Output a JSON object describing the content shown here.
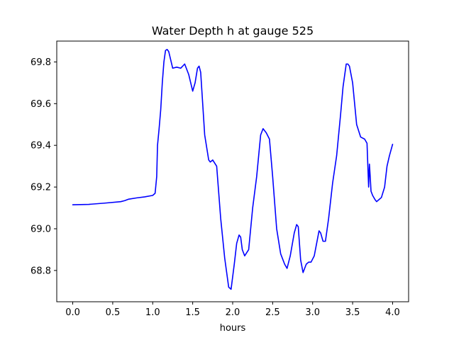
{
  "chart_data": {
    "type": "line",
    "title": "Water Depth h at gauge 525",
    "xlabel": "hours",
    "ylabel": "",
    "xlim": [
      -0.2,
      4.2
    ],
    "ylim": [
      68.65,
      69.9
    ],
    "x_ticks": [
      0.0,
      0.5,
      1.0,
      1.5,
      2.0,
      2.5,
      3.0,
      3.5,
      4.0
    ],
    "x_tick_labels": [
      "0.0",
      "0.5",
      "1.0",
      "1.5",
      "2.0",
      "2.5",
      "3.0",
      "3.5",
      "4.0"
    ],
    "y_ticks": [
      68.8,
      69.0,
      69.2,
      69.4,
      69.6,
      69.8
    ],
    "y_tick_labels": [
      "68.8",
      "69.0",
      "69.2",
      "69.4",
      "69.6",
      "69.8"
    ],
    "grid": false,
    "series": [
      {
        "color": "#0000ff",
        "x": [
          0.0,
          0.2,
          0.4,
          0.6,
          0.65,
          0.7,
          0.8,
          0.9,
          1.0,
          1.03,
          1.05,
          1.06,
          1.08,
          1.1,
          1.12,
          1.14,
          1.16,
          1.18,
          1.2,
          1.25,
          1.3,
          1.35,
          1.4,
          1.45,
          1.5,
          1.53,
          1.56,
          1.58,
          1.6,
          1.65,
          1.7,
          1.72,
          1.75,
          1.8,
          1.85,
          1.9,
          1.95,
          1.98,
          2.02,
          2.05,
          2.08,
          2.1,
          2.12,
          2.15,
          2.2,
          2.25,
          2.3,
          2.35,
          2.38,
          2.42,
          2.46,
          2.5,
          2.55,
          2.6,
          2.65,
          2.68,
          2.72,
          2.77,
          2.8,
          2.82,
          2.85,
          2.88,
          2.92,
          2.95,
          2.98,
          3.02,
          3.05,
          3.08,
          3.1,
          3.13,
          3.16,
          3.2,
          3.25,
          3.3,
          3.35,
          3.38,
          3.42,
          3.44,
          3.46,
          3.5,
          3.55,
          3.6,
          3.65,
          3.68,
          3.7,
          3.71,
          3.72,
          3.73,
          3.75,
          3.78,
          3.8,
          3.83,
          3.86,
          3.9,
          3.93,
          3.96,
          4.0
        ],
        "values": [
          69.115,
          69.117,
          69.123,
          69.13,
          69.135,
          69.142,
          69.148,
          69.153,
          69.16,
          69.17,
          69.25,
          69.4,
          69.48,
          69.57,
          69.7,
          69.8,
          69.855,
          69.86,
          69.85,
          69.77,
          69.775,
          69.77,
          69.79,
          69.74,
          69.66,
          69.7,
          69.77,
          69.78,
          69.75,
          69.45,
          69.33,
          69.32,
          69.33,
          69.3,
          69.05,
          68.86,
          68.72,
          68.71,
          68.83,
          68.93,
          68.97,
          68.96,
          68.9,
          68.87,
          68.9,
          69.1,
          69.25,
          69.45,
          69.48,
          69.46,
          69.43,
          69.25,
          69.0,
          68.88,
          68.83,
          68.81,
          68.87,
          68.98,
          69.02,
          69.01,
          68.85,
          68.79,
          68.83,
          68.84,
          68.84,
          68.87,
          68.93,
          68.99,
          68.98,
          68.94,
          68.94,
          69.05,
          69.22,
          69.35,
          69.55,
          69.68,
          69.79,
          69.79,
          69.78,
          69.7,
          69.5,
          69.44,
          69.43,
          69.41,
          69.2,
          69.31,
          69.25,
          69.18,
          69.16,
          69.14,
          69.13,
          69.14,
          69.15,
          69.2,
          69.3,
          69.35,
          69.405
        ]
      }
    ]
  }
}
